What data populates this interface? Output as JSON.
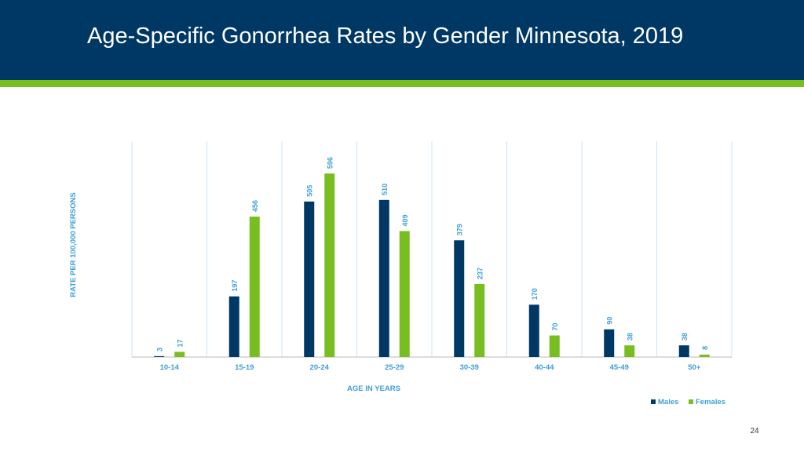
{
  "slide": {
    "title": "Age-Specific Gonorrhea Rates by Gender Minnesota, 2019",
    "page_number": "24"
  },
  "colors": {
    "header": "#003865",
    "accent": "#78be20",
    "males": "#003865",
    "females": "#78be20",
    "axis_text": "#3d9fd8",
    "gridline": "#c9e4f5"
  },
  "chart_data": {
    "type": "bar",
    "categories": [
      "10-14",
      "15-19",
      "20-24",
      "25-29",
      "30-39",
      "40-44",
      "45-49",
      "50+"
    ],
    "series": [
      {
        "name": "Males",
        "values": [
          3,
          197,
          505,
          510,
          379,
          170,
          90,
          38
        ]
      },
      {
        "name": "Females",
        "values": [
          17,
          456,
          596,
          409,
          237,
          70,
          38,
          8
        ]
      }
    ],
    "xlabel": "AGE IN YEARS",
    "ylabel": "RATE PER 100,000 PERSONS",
    "ylim": [
      0,
      700
    ],
    "grid": "vertical",
    "legend": "bottom-right"
  }
}
